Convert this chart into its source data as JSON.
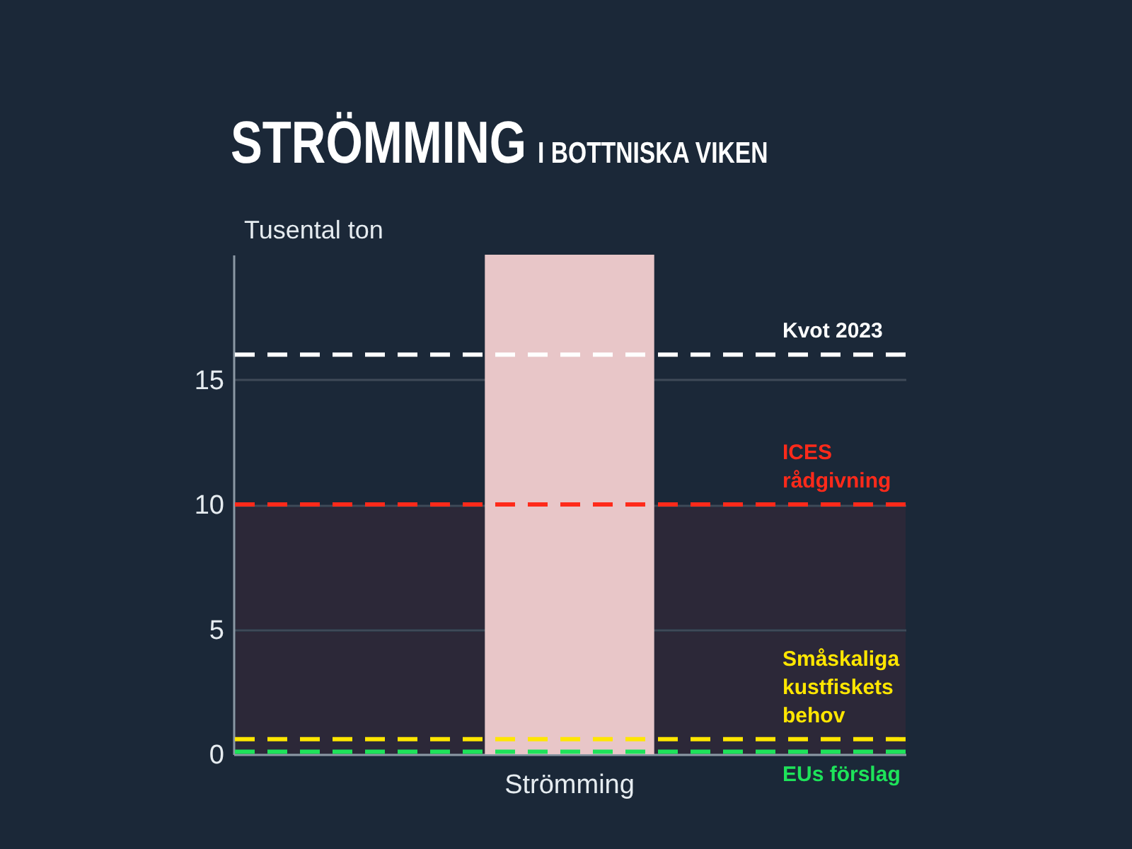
{
  "chart_data": {
    "type": "bar",
    "title": "STRÖMMING",
    "subtitle": "I BOTTNISKA VIKEN",
    "ylabel": "Tusental ton",
    "categories": [
      "Strömming"
    ],
    "values": [
      20
    ],
    "color": "#e8c6c8",
    "ylim": [
      0,
      20
    ],
    "yticks": [
      0,
      5,
      10,
      15
    ],
    "grid": "y",
    "ref_lines": [
      {
        "axis": "y",
        "value": 16,
        "label": "Kvot 2023",
        "color": "#ffffff",
        "line_style": "dashed"
      },
      {
        "axis": "y",
        "value": 10,
        "label": "ICES\nrådgivning",
        "color": "#ff2a1a",
        "line_style": "dashed"
      },
      {
        "axis": "y",
        "value": 0.6,
        "label": "Småskaliga\nkustfiskets\nbehov",
        "color": "#ffe600",
        "line_style": "dashed"
      },
      {
        "axis": "y",
        "value": 0.1,
        "label": "EUs förslag",
        "color": "#1ee35a",
        "line_style": "dashed"
      }
    ],
    "bands": [
      {
        "axis": "y",
        "from": 0,
        "to": 10,
        "color": "#2c2530"
      }
    ]
  }
}
